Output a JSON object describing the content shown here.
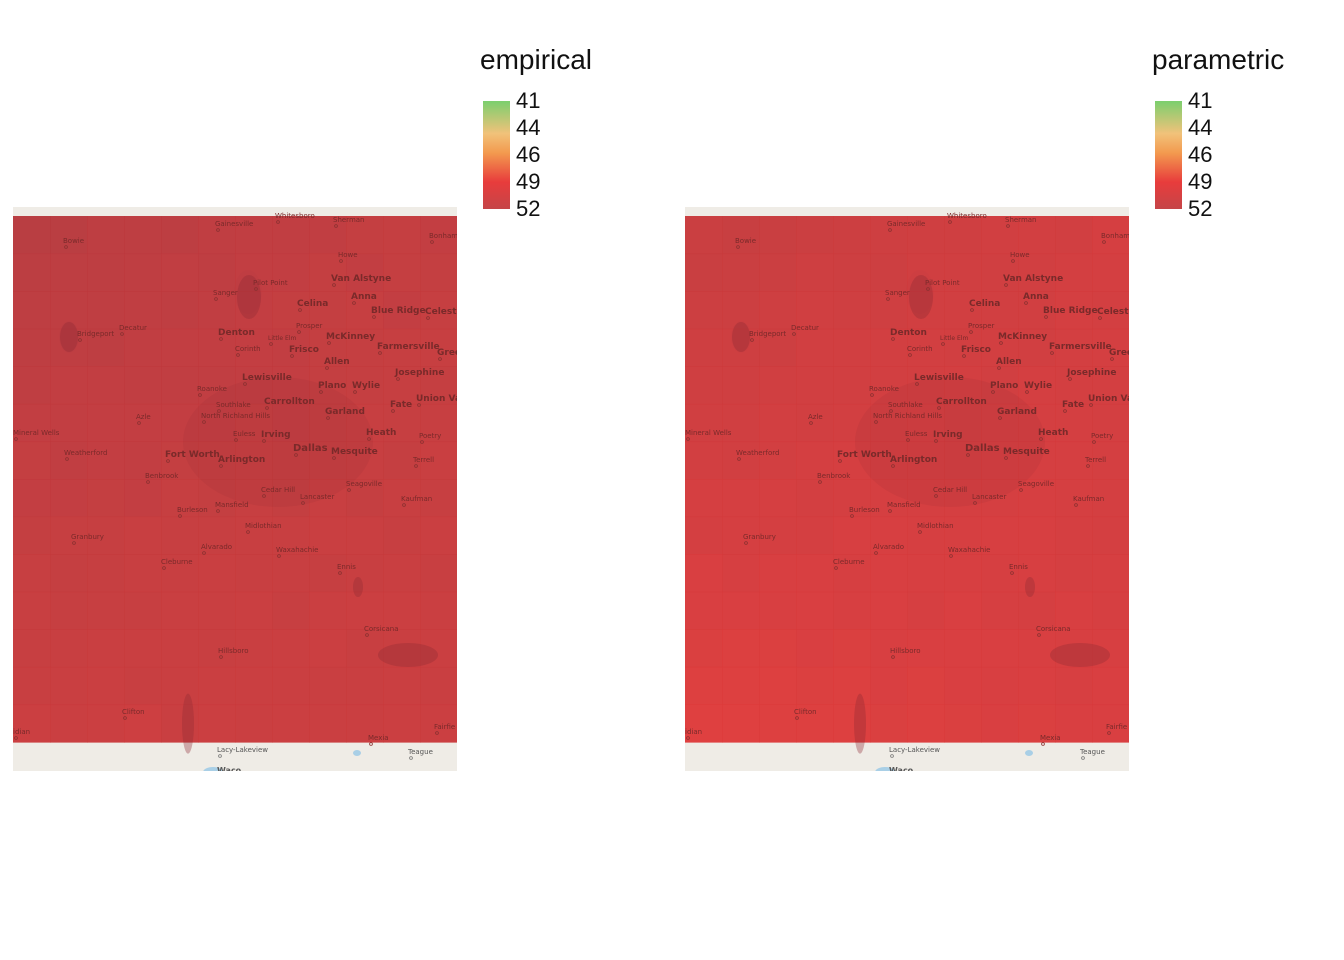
{
  "colors": {
    "scale": [
      "#7bcf6e",
      "#f1c27a",
      "#f39a4f",
      "#e83c3c",
      "#c54548"
    ],
    "basemap": "#efece6",
    "overlay_red": "#d63a3a"
  },
  "panels": [
    {
      "legend_title": "empirical",
      "ticks": [
        "41",
        "44",
        "46",
        "49",
        "52"
      ],
      "tint": "dark"
    },
    {
      "legend_title": "parametric",
      "ticks": [
        "41",
        "44",
        "46",
        "49",
        "52"
      ],
      "tint": "light"
    }
  ],
  "map_labels": {
    "whitesboro": "Whitesboro",
    "sherman": "Sherman",
    "bonham": "Bonham",
    "gainesville": "Gainesville",
    "bowie": "Bowie",
    "howe": "Howe",
    "van_alstyne": "Van Alstyne",
    "sanger": "Sanger",
    "pilot_point": "Pilot Point",
    "celina": "Celina",
    "anna": "Anna",
    "blue_ridge": "Blue Ridge",
    "celeste": "Celeste",
    "bridgeport": "Bridgeport",
    "decatur": "Decatur",
    "denton": "Denton",
    "prosper": "Prosper",
    "mckinney": "McKinney",
    "corinth": "Corinth",
    "little_elm": "Little Elm",
    "frisco": "Frisco",
    "farmersville": "Farmersville",
    "greenville": "Gree",
    "allen": "Allen",
    "lewisville": "Lewisville",
    "josephine": "Josephine",
    "roanoke": "Roanoke",
    "plano": "Plano",
    "wylie": "Wylie",
    "southlake": "Southlake",
    "carrollton": "Carrollton",
    "fate": "Fate",
    "union_valley": "Union Valley",
    "azle": "Azle",
    "north_richland_hills": "North Richland Hills",
    "garland": "Garland",
    "euless": "Euless",
    "irving": "Irving",
    "heath": "Heath",
    "poetry": "Poetry",
    "mineral_wells": "Mineral Wells",
    "weatherford": "Weatherford",
    "fort_worth": "Fort Worth",
    "arlington": "Arlington",
    "dallas": "Dallas",
    "mesquite": "Mesquite",
    "terrell": "Terrell",
    "benbrook": "Benbrook",
    "cedar_hill": "Cedar Hill",
    "seagoville": "Seagoville",
    "lancaster": "Lancaster",
    "mansfield": "Mansfield",
    "kaufman": "Kaufman",
    "burleson": "Burleson",
    "granbury": "Granbury",
    "midlothian": "Midlothian",
    "alvarado": "Alvarado",
    "waxahachie": "Waxahachie",
    "cleburne": "Cleburne",
    "ennis": "Ennis",
    "corsicana": "Corsicana",
    "hillsboro": "Hillsboro",
    "clifton": "Clifton",
    "fairfield": "Fairfie",
    "meridian": "idian",
    "mexia": "Mexia",
    "lacy_lakeview": "Lacy-Lakeview",
    "teague": "Teague",
    "waco": "Waco"
  }
}
